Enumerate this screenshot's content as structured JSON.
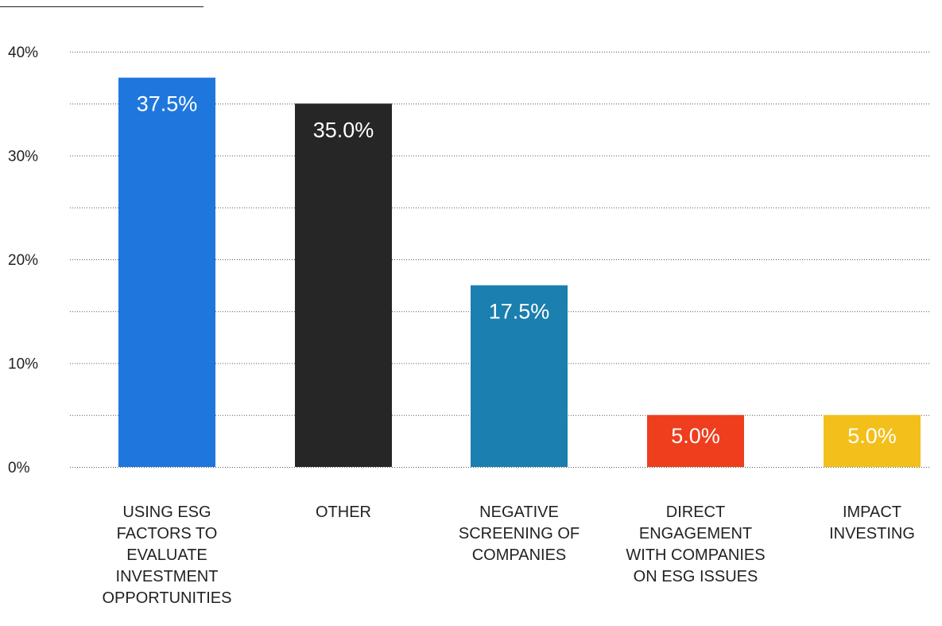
{
  "chart_data": {
    "type": "bar",
    "categories": [
      [
        "USING ESG",
        "FACTORS TO",
        "EVALUATE",
        "INVESTMENT",
        "OPPORTUNITIES"
      ],
      [
        "OTHER"
      ],
      [
        "NEGATIVE",
        "SCREENING OF",
        "COMPANIES"
      ],
      [
        "DIRECT",
        "ENGAGEMENT",
        "WITH COMPANIES",
        "ON ESG ISSUES"
      ],
      [
        "IMPACT",
        "INVESTING"
      ]
    ],
    "values": [
      37.5,
      35.0,
      17.5,
      5.0,
      5.0
    ],
    "data_labels": [
      "37.5%",
      "35.0%",
      "17.5%",
      "5.0%",
      "5.0%"
    ],
    "colors": [
      "#1f77dd",
      "#262626",
      "#1b7faf",
      "#ee3e1d",
      "#f3bf1a"
    ],
    "y_ticks": [
      0,
      10,
      20,
      30,
      40
    ],
    "y_tick_labels": [
      "0%",
      "10%",
      "20%",
      "30%",
      "40%"
    ],
    "ylim": [
      0,
      40
    ],
    "grid": "dotted, every 5%",
    "legend": "none"
  }
}
